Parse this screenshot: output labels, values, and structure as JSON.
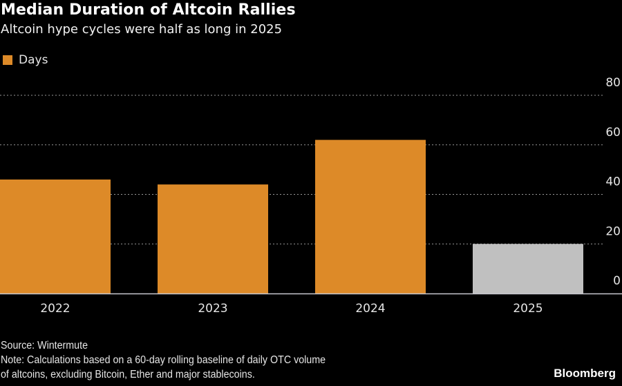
{
  "header": {
    "title": "Median Duration of Altcoin Rallies",
    "subtitle": "Altcoin hype cycles were half as long in 2025"
  },
  "footer": {
    "source": "Source: Wintermute",
    "note_line1": "Note: Calculations based on a 60-day rolling baseline of daily OTC volume",
    "note_line2": "of altcoins, excluding Bitcoin, Ether and major stablecoins.",
    "brand": "Bloomberg"
  },
  "chart_data": {
    "type": "bar",
    "title": "Median Duration of Altcoin Rallies",
    "subtitle": "Altcoin hype cycles were half as long in 2025",
    "xlabel": "",
    "ylabel": "",
    "categories": [
      "2022",
      "2023",
      "2024",
      "2025"
    ],
    "series": [
      {
        "name": "Days",
        "values": [
          46,
          44,
          62,
          20
        ]
      }
    ],
    "bar_colors": [
      "#dd8a28",
      "#dd8a28",
      "#dd8a28",
      "#c0c0c0"
    ],
    "ylim": [
      0,
      80
    ],
    "yticks": [
      0,
      20,
      40,
      60,
      80
    ],
    "grid": true,
    "y_axis_side": "right",
    "legend": {
      "placement": "top-left",
      "entries": [
        {
          "label": "Days",
          "color": "#dd8a28"
        }
      ]
    }
  }
}
